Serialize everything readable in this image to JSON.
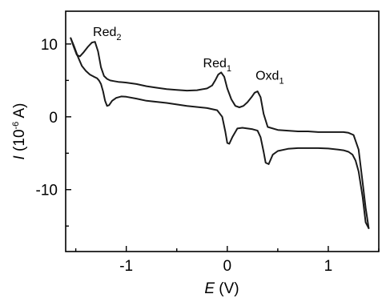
{
  "chart_data": {
    "type": "line",
    "title": "",
    "xlabel": {
      "symbol": "E",
      "unit": " (V)"
    },
    "ylabel": {
      "symbol": "I",
      "unit_before": " (10",
      "exponent": "-6",
      "unit_after": " A)"
    },
    "xlim": [
      -1.6,
      1.5
    ],
    "ylim": [
      -18.5,
      14.5
    ],
    "xticks": [
      -1,
      0,
      1
    ],
    "xtick_labels": [
      "-1",
      "0",
      "1"
    ],
    "yticks": [
      10,
      0,
      -10
    ],
    "ytick_labels": [
      "10",
      "0",
      "-10"
    ],
    "grid": false,
    "legend": "none",
    "line_color": "#1a1a1a",
    "series": [
      {
        "x": [
          -1.55,
          -1.52,
          -1.49,
          -1.46,
          -1.42,
          -1.38,
          -1.34,
          -1.31,
          -1.28,
          -1.25,
          -1.22,
          -1.19,
          -1.16,
          -1.12,
          -1.08,
          -1.04,
          -1.0,
          -0.9,
          -0.8,
          -0.7,
          -0.6,
          -0.5,
          -0.4,
          -0.3,
          -0.2,
          -0.15,
          -0.12,
          -0.09,
          -0.06,
          -0.03,
          0.0,
          0.04,
          0.08,
          0.12,
          0.16,
          0.2,
          0.24,
          0.27,
          0.3,
          0.33,
          0.36,
          0.4,
          0.5,
          0.6,
          0.7,
          0.8,
          0.9,
          1.0,
          1.1,
          1.15,
          1.2,
          1.25,
          1.3,
          1.34,
          1.37,
          1.4
        ],
        "y": [
          10.8,
          9.6,
          8.5,
          8.3,
          8.9,
          9.6,
          10.2,
          10.3,
          9.0,
          6.8,
          5.6,
          5.2,
          5.0,
          4.9,
          4.8,
          4.75,
          4.7,
          4.5,
          4.2,
          4.0,
          3.8,
          3.7,
          3.6,
          3.65,
          3.9,
          4.3,
          5.0,
          5.8,
          6.1,
          5.5,
          3.9,
          2.4,
          1.5,
          1.3,
          1.5,
          2.0,
          2.7,
          3.3,
          3.5,
          2.7,
          0.4,
          -1.4,
          -1.8,
          -1.9,
          -2.0,
          -2.0,
          -2.1,
          -2.1,
          -2.1,
          -2.1,
          -2.2,
          -2.5,
          -4.5,
          -9.0,
          -12.5,
          -15.3
        ]
      },
      {
        "x": [
          -1.55,
          -1.52,
          -1.48,
          -1.44,
          -1.4,
          -1.36,
          -1.32,
          -1.29,
          -1.27,
          -1.25,
          -1.23,
          -1.21,
          -1.19,
          -1.17,
          -1.14,
          -1.1,
          -1.05,
          -1.0,
          -0.9,
          -0.8,
          -0.6,
          -0.4,
          -0.2,
          -0.1,
          -0.05,
          -0.02,
          0.0,
          0.02,
          0.05,
          0.1,
          0.15,
          0.2,
          0.25,
          0.3,
          0.33,
          0.36,
          0.38,
          0.41,
          0.45,
          0.5,
          0.6,
          0.7,
          0.8,
          0.9,
          1.0,
          1.1,
          1.15,
          1.2,
          1.24,
          1.27,
          1.3,
          1.34,
          1.37,
          1.4
        ],
        "y": [
          10.8,
          9.8,
          8.3,
          7.0,
          6.3,
          5.8,
          5.5,
          5.3,
          5.0,
          4.5,
          3.5,
          2.2,
          1.5,
          1.6,
          2.2,
          2.6,
          2.8,
          2.75,
          2.5,
          2.2,
          1.9,
          1.5,
          1.2,
          0.9,
          0.0,
          -2.0,
          -3.6,
          -3.7,
          -2.8,
          -1.6,
          -1.5,
          -1.6,
          -1.7,
          -1.9,
          -2.8,
          -4.8,
          -6.3,
          -6.5,
          -5.2,
          -4.7,
          -4.4,
          -4.3,
          -4.3,
          -4.3,
          -4.35,
          -4.5,
          -4.6,
          -4.8,
          -5.2,
          -6.0,
          -7.5,
          -11.0,
          -14.5,
          -15.3
        ]
      }
    ],
    "annotations": [
      {
        "base": "Red",
        "sub": "2",
        "x": -1.33,
        "y": 11.1
      },
      {
        "base": "Red",
        "sub": "1",
        "x": -0.24,
        "y": 6.8
      },
      {
        "base": "Oxd",
        "sub": "1",
        "x": 0.28,
        "y": 5.1
      }
    ]
  }
}
